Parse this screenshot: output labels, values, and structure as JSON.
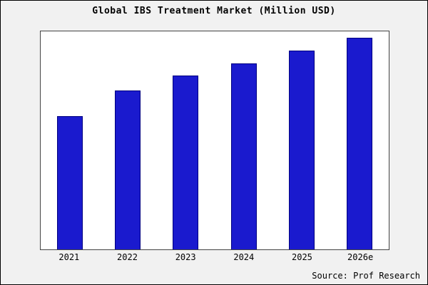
{
  "chart_data": {
    "type": "bar",
    "title": "Global IBS Treatment Market (Million USD)",
    "categories": [
      "2021",
      "2022",
      "2023",
      "2024",
      "2025",
      "2026e"
    ],
    "values": [
      63,
      75,
      82,
      88,
      94,
      100
    ],
    "ylim": [
      0,
      103
    ],
    "xlabel": "",
    "ylabel": "",
    "grid": false,
    "legend": false,
    "bar_color": "#1a1ace",
    "bar_border_color": "#000080",
    "plot_background": "#ffffff",
    "figure_background": "#f1f1f1"
  },
  "source": {
    "label": "Source: Prof Research"
  }
}
